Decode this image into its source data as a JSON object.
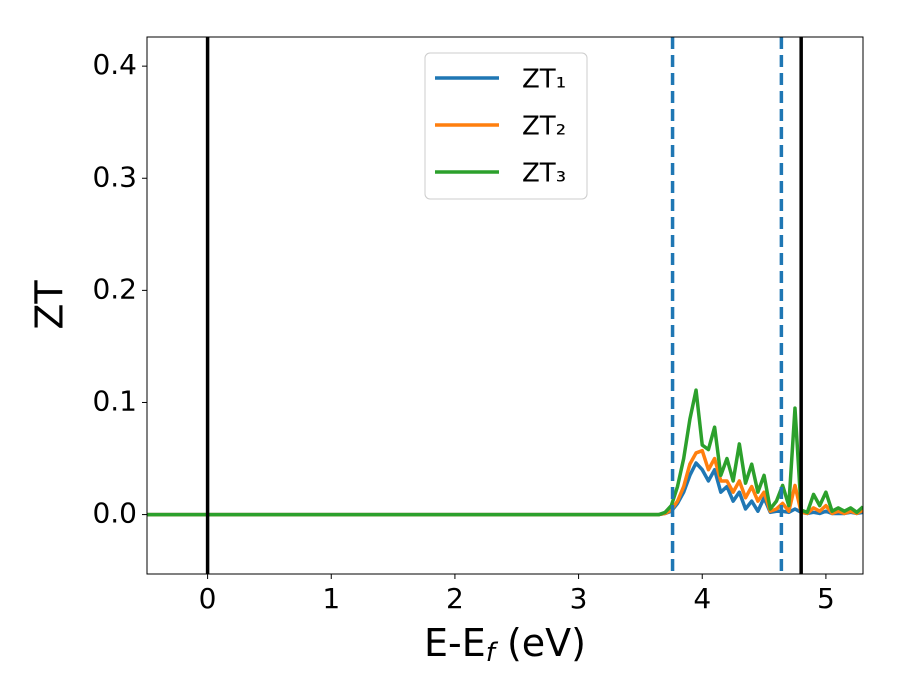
{
  "chart_data": {
    "type": "line",
    "y_label": "ZT",
    "x_label": {
      "main": "E-E",
      "sub": "f",
      "unit": " (eV)"
    },
    "x": [
      -0.49,
      3.5,
      3.6,
      3.65,
      3.7,
      3.75,
      3.8,
      3.85,
      3.9,
      3.95,
      4.0,
      4.05,
      4.1,
      4.15,
      4.2,
      4.25,
      4.3,
      4.35,
      4.4,
      4.45,
      4.5,
      4.55,
      4.6,
      4.65,
      4.7,
      4.75,
      4.8,
      4.85,
      4.9,
      4.95,
      5.0,
      5.05,
      5.1,
      5.15,
      5.2,
      5.25,
      5.3
    ],
    "series": [
      {
        "name": "ZT₁",
        "color": "#1f77b4",
        "values": [
          0,
          0,
          0,
          0,
          0.001,
          0.003,
          0.01,
          0.02,
          0.035,
          0.046,
          0.04,
          0.03,
          0.04,
          0.02,
          0.025,
          0.012,
          0.02,
          0.005,
          0.012,
          0.003,
          0.015,
          0.002,
          0.003,
          0.003,
          0.002,
          0.005,
          0.002,
          0.001,
          0.002,
          0.001,
          0.003,
          0.001,
          0.001,
          0.001,
          0.002,
          0.001,
          0.002
        ]
      },
      {
        "name": "ZT₂",
        "color": "#ff7f0e",
        "values": [
          0,
          0,
          0,
          0,
          0.001,
          0.004,
          0.012,
          0.025,
          0.045,
          0.055,
          0.057,
          0.04,
          0.05,
          0.03,
          0.03,
          0.02,
          0.03,
          0.015,
          0.025,
          0.012,
          0.02,
          0.003,
          0.005,
          0.01,
          0.003,
          0.026,
          0.002,
          0.001,
          0.006,
          0.003,
          0.008,
          0.001,
          0.003,
          0.001,
          0.003,
          0.001,
          0.004
        ]
      },
      {
        "name": "ZT₃",
        "color": "#2ca02c",
        "values": [
          0,
          0,
          0,
          0,
          0.002,
          0.008,
          0.025,
          0.05,
          0.085,
          0.111,
          0.062,
          0.058,
          0.078,
          0.035,
          0.05,
          0.03,
          0.063,
          0.028,
          0.045,
          0.02,
          0.035,
          0.005,
          0.012,
          0.026,
          0.008,
          0.095,
          0.004,
          0.002,
          0.018,
          0.008,
          0.02,
          0.003,
          0.006,
          0.003,
          0.006,
          0.002,
          0.007
        ]
      }
    ],
    "vlines": [
      {
        "x": 0,
        "color": "#000000",
        "dashed": false
      },
      {
        "x": 4.8,
        "color": "#000000",
        "dashed": false
      },
      {
        "x": 3.76,
        "color": "#1f77b4",
        "dashed": true
      },
      {
        "x": 4.64,
        "color": "#1f77b4",
        "dashed": true
      }
    ],
    "xlim": [
      -0.49,
      5.3
    ],
    "ylim": [
      -0.053,
      0.426
    ],
    "xticks": [
      0,
      1,
      2,
      3,
      4,
      5
    ],
    "yticks": [
      {
        "value": 0,
        "label": "0.0"
      },
      0.1,
      0.2,
      0.3,
      0.4
    ],
    "grid": false,
    "legend": "upper center"
  }
}
